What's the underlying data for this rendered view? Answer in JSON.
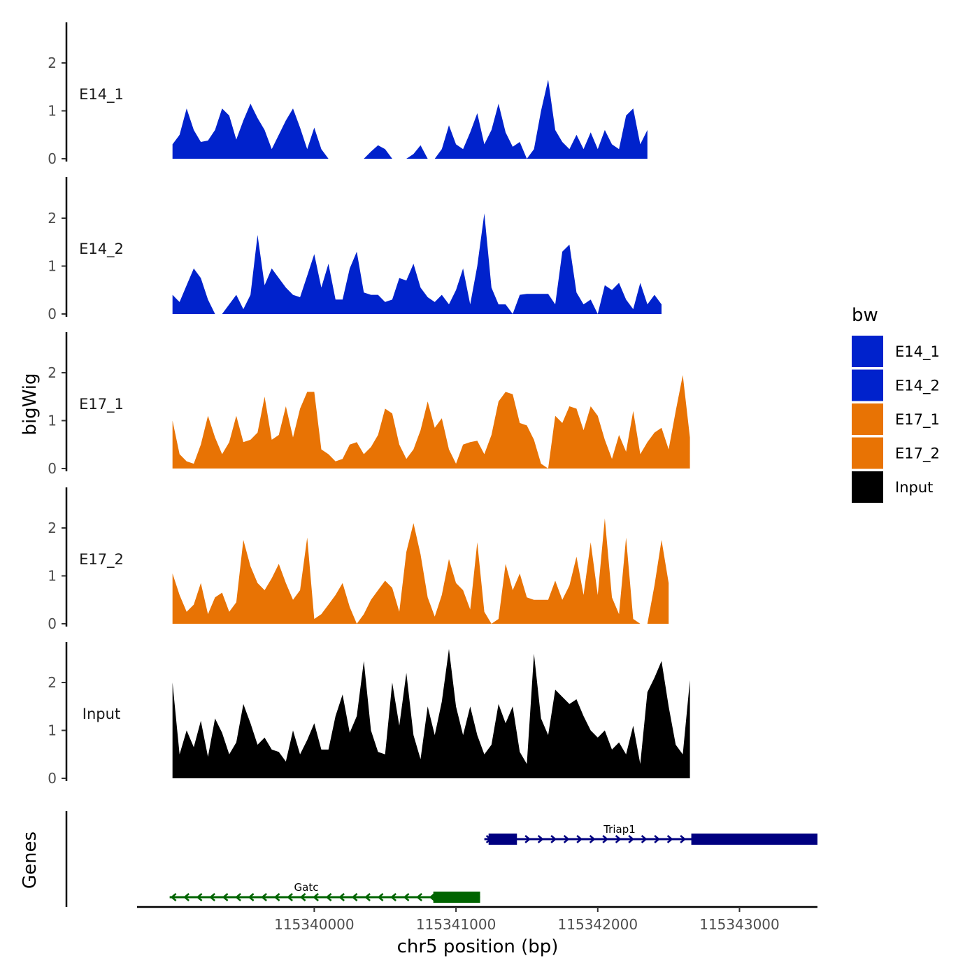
{
  "chart_data": {
    "type": "area",
    "xlabel": "chr5 position (bp)",
    "ylabel": "bigWig",
    "genes_label": "Genes",
    "xlim": [
      115338750,
      115343550
    ],
    "ylim": [
      0,
      2.9
    ],
    "x_ticks": [
      115340000,
      115341000,
      115342000,
      115343000
    ],
    "x_tick_labels": [
      "115340000",
      "115341000",
      "115342000",
      "115343000"
    ],
    "y_ticks": [
      0,
      1,
      2
    ],
    "y_tick_labels": [
      "0",
      "1",
      "2"
    ],
    "legend": {
      "title": "bw",
      "entries": [
        {
          "name": "E14_1",
          "color": "#0022CC"
        },
        {
          "name": "E14_2",
          "color": "#0022CC"
        },
        {
          "name": "E17_1",
          "color": "#E87304"
        },
        {
          "name": "E17_2",
          "color": "#E87304"
        },
        {
          "name": "Input",
          "color": "#000000"
        }
      ]
    },
    "x_start": 115339000,
    "x_step": 50,
    "series": [
      {
        "name": "E14_1",
        "color": "#0022CC",
        "values": [
          0.3,
          0.5,
          1.05,
          0.6,
          0.35,
          0.38,
          0.6,
          1.05,
          0.9,
          0.4,
          0.8,
          1.15,
          0.85,
          0.6,
          0.2,
          0.5,
          0.8,
          1.05,
          0.65,
          0.2,
          0.65,
          0.2,
          0,
          0,
          0,
          0,
          0,
          0,
          0.15,
          0.28,
          0.2,
          0,
          0,
          0,
          0.1,
          0.28,
          0,
          0,
          0.2,
          0.7,
          0.3,
          0.2,
          0.55,
          0.95,
          0.3,
          0.6,
          1.15,
          0.55,
          0.25,
          0.35,
          0,
          0.2,
          1.0,
          1.65,
          0.6,
          0.35,
          0.2,
          0.5,
          0.2,
          0.55,
          0.2,
          0.6,
          0.3,
          0.2,
          0.9,
          1.05,
          0.3,
          0.6
        ]
      },
      {
        "name": "E14_2",
        "color": "#0022CC",
        "values": [
          0.4,
          0.25,
          0.6,
          0.95,
          0.75,
          0.3,
          0,
          0,
          0.2,
          0.4,
          0.1,
          0.4,
          1.65,
          0.6,
          0.95,
          0.75,
          0.55,
          0.4,
          0.35,
          0.8,
          1.25,
          0.55,
          1.05,
          0.3,
          0.3,
          0.95,
          1.3,
          0.45,
          0.4,
          0.4,
          0.25,
          0.3,
          0.75,
          0.7,
          1.05,
          0.55,
          0.35,
          0.25,
          0.4,
          0.2,
          0.5,
          0.95,
          0.2,
          1.0,
          2.1,
          0.55,
          0.2,
          0.2,
          0,
          0.4,
          0.42,
          0.42,
          0.42,
          0.42,
          0.2,
          1.3,
          1.45,
          0.45,
          0.2,
          0.3,
          0,
          0.6,
          0.5,
          0.65,
          0.3,
          0.1,
          0.65,
          0.2,
          0.4,
          0.2
        ]
      },
      {
        "name": "E17_1",
        "color": "#E87304",
        "values": [
          1.0,
          0.3,
          0.15,
          0.1,
          0.5,
          1.1,
          0.65,
          0.3,
          0.55,
          1.1,
          0.55,
          0.6,
          0.75,
          1.5,
          0.6,
          0.7,
          1.3,
          0.65,
          1.25,
          1.6,
          1.6,
          0.4,
          0.3,
          0.15,
          0.2,
          0.5,
          0.55,
          0.3,
          0.45,
          0.7,
          1.25,
          1.15,
          0.5,
          0.2,
          0.4,
          0.8,
          1.4,
          0.85,
          1.05,
          0.4,
          0.1,
          0.5,
          0.55,
          0.58,
          0.3,
          0.7,
          1.4,
          1.6,
          1.55,
          0.95,
          0.9,
          0.6,
          0.1,
          0,
          1.1,
          0.95,
          1.3,
          1.25,
          0.8,
          1.3,
          1.1,
          0.6,
          0.2,
          0.7,
          0.35,
          1.2,
          0.3,
          0.55,
          0.75,
          0.85,
          0.4,
          1.2,
          1.95,
          0.65
        ]
      },
      {
        "name": "E17_2",
        "color": "#E87304",
        "values": [
          1.05,
          0.6,
          0.25,
          0.4,
          0.85,
          0.2,
          0.55,
          0.65,
          0.25,
          0.45,
          1.75,
          1.2,
          0.85,
          0.7,
          0.95,
          1.25,
          0.85,
          0.5,
          0.7,
          1.8,
          0.1,
          0.2,
          0.4,
          0.6,
          0.85,
          0.35,
          0,
          0.2,
          0.5,
          0.7,
          0.9,
          0.75,
          0.25,
          1.5,
          2.1,
          1.45,
          0.55,
          0.15,
          0.6,
          1.35,
          0.85,
          0.7,
          0.3,
          1.7,
          0.25,
          0,
          0.1,
          1.25,
          0.7,
          1.05,
          0.55,
          0.5,
          0.5,
          0.5,
          0.9,
          0.5,
          0.8,
          1.4,
          0.6,
          1.7,
          0.6,
          2.2,
          0.55,
          0.2,
          1.8,
          0.1,
          0,
          0,
          0.8,
          1.75,
          0.85
        ]
      },
      {
        "name": "Input",
        "color": "#000000",
        "values": [
          2.0,
          0.5,
          1.0,
          0.65,
          1.2,
          0.45,
          1.25,
          0.95,
          0.5,
          0.75,
          1.55,
          1.15,
          0.7,
          0.85,
          0.6,
          0.55,
          0.35,
          1.0,
          0.5,
          0.8,
          1.15,
          0.6,
          0.6,
          1.3,
          1.75,
          0.95,
          1.3,
          2.45,
          1.0,
          0.55,
          0.5,
          2.0,
          1.1,
          2.2,
          0.9,
          0.4,
          1.5,
          0.9,
          1.6,
          2.7,
          1.5,
          0.9,
          1.5,
          0.9,
          0.5,
          0.7,
          1.55,
          1.15,
          1.5,
          0.55,
          0.3,
          2.6,
          1.25,
          0.9,
          1.85,
          1.7,
          1.55,
          1.65,
          1.3,
          1.0,
          0.85,
          1.0,
          0.6,
          0.75,
          0.5,
          1.1,
          0.3,
          1.8,
          2.1,
          2.45,
          1.5,
          0.7,
          0.5,
          2.05
        ]
      }
    ],
    "genes": [
      {
        "name": "Triap1",
        "strand": "+",
        "color": "#000080",
        "start": 115341200,
        "end": 115343550,
        "exons": [
          [
            115341230,
            115341430
          ],
          [
            115342660,
            115343550
          ]
        ]
      },
      {
        "name": "Gatc",
        "strand": "-",
        "color": "#006400",
        "start": 115338980,
        "end": 115341170,
        "exons": [
          [
            115340840,
            115341170
          ]
        ]
      }
    ]
  }
}
